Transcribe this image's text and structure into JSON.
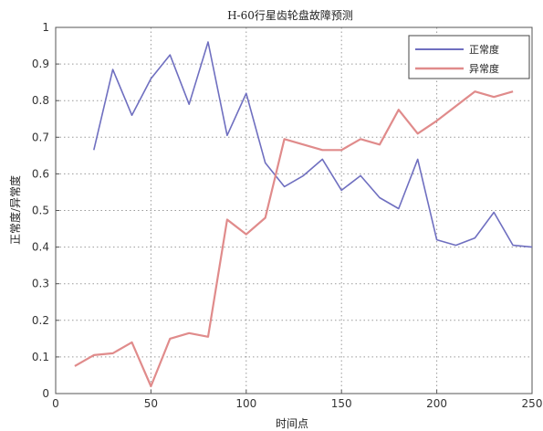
{
  "chart_data": {
    "type": "line",
    "title": "H-60行星齿轮盘故障预测",
    "xlabel": "时间点",
    "ylabel": "正常度/异常度",
    "xlim": [
      0,
      250
    ],
    "ylim": [
      0,
      1
    ],
    "xticks": [
      0,
      50,
      100,
      150,
      200,
      250
    ],
    "yticks": [
      0,
      0.1,
      0.2,
      0.3,
      0.4,
      0.5,
      0.6,
      0.7,
      0.8,
      0.9,
      1
    ],
    "grid": true,
    "legend_position": "top-right",
    "series": [
      {
        "name": "正常度",
        "color": "#6f6fc0",
        "x": [
          20,
          30,
          40,
          50,
          60,
          70,
          80,
          90,
          100,
          110,
          120,
          130,
          140,
          150,
          160,
          170,
          180,
          190,
          200,
          210,
          220,
          230,
          240,
          250
        ],
        "y": [
          0.665,
          0.885,
          0.76,
          0.86,
          0.925,
          0.79,
          0.96,
          0.705,
          0.82,
          0.63,
          0.565,
          0.595,
          0.64,
          0.555,
          0.595,
          0.535,
          0.505,
          0.64,
          0.42,
          0.405,
          0.425,
          0.495,
          0.405,
          0.4
        ]
      },
      {
        "name": "异常度",
        "color": "#e08b8b",
        "x": [
          10,
          20,
          30,
          40,
          50,
          60,
          70,
          80,
          90,
          100,
          110,
          120,
          130,
          140,
          150,
          160,
          170,
          180,
          190,
          200,
          210,
          220,
          230,
          240
        ],
        "y": [
          0.075,
          0.105,
          0.11,
          0.14,
          0.02,
          0.15,
          0.165,
          0.155,
          0.475,
          0.435,
          0.48,
          0.695,
          0.68,
          0.665,
          0.665,
          0.695,
          0.68,
          0.775,
          0.71,
          0.745,
          0.785,
          0.825,
          0.81,
          0.825
        ]
      }
    ]
  }
}
